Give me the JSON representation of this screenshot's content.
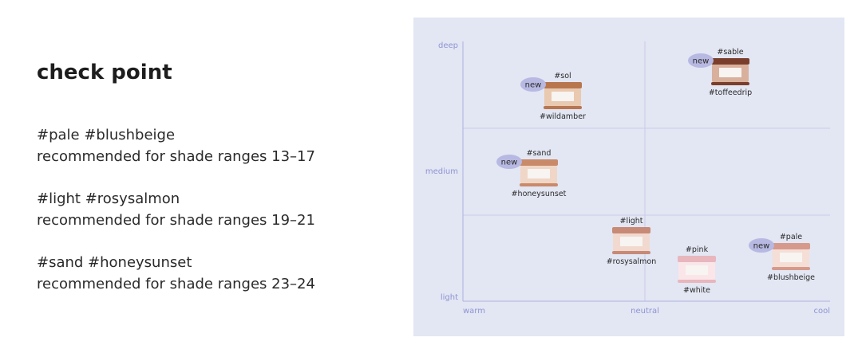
{
  "heading": {
    "title": "check point"
  },
  "recommendations": [
    {
      "tags": "#pale #blushbeige",
      "text": "recommended for shade ranges 13–17"
    },
    {
      "tags": "#light #rosysalmon",
      "text": "recommended for shade ranges 19–21"
    },
    {
      "tags": "#sand #honeysunset",
      "text": "recommended for shade ranges 23–24"
    }
  ],
  "map": {
    "y_axis": [
      "deep",
      "medium",
      "light"
    ],
    "x_axis": [
      "warm",
      "neutral",
      "cool"
    ],
    "products": [
      {
        "badge": "new",
        "top": "#sol",
        "bottom": "#wildamber"
      },
      {
        "badge": "new",
        "top": "#sable",
        "bottom": "#toffeedrip"
      },
      {
        "badge": "new",
        "top": "#sand",
        "bottom": "#honeysunset"
      },
      {
        "top": "#light",
        "bottom": "#rosysalmon"
      },
      {
        "top": "#pink",
        "bottom": "#white"
      },
      {
        "badge": "new",
        "top": "#pale",
        "bottom": "#blushbeige"
      }
    ]
  }
}
